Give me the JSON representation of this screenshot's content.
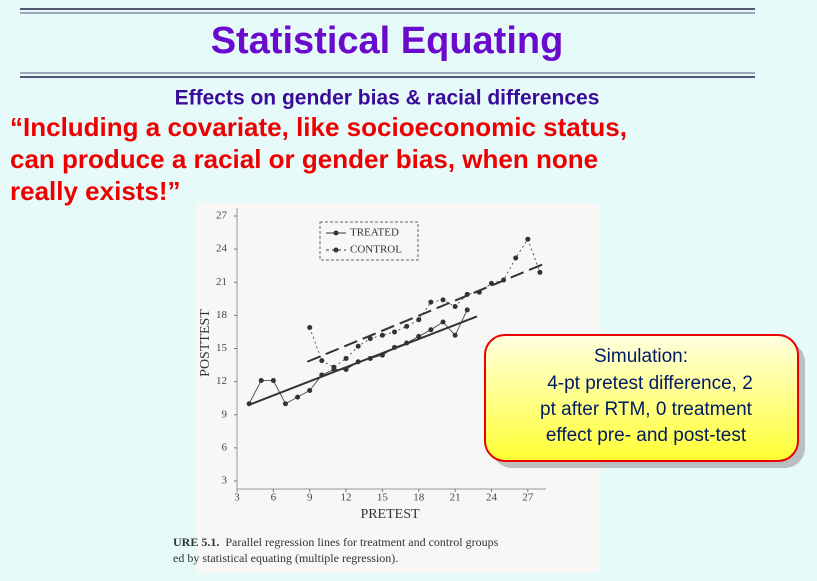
{
  "slide": {
    "title": "Statistical Equating",
    "subtitle": "Effects on gender bias & racial differences",
    "quote": [
      "“Including a covariate, like socioeconomic status,",
      "can produce a racial or gender bias, when none",
      "really exists!”"
    ],
    "callout": [
      "Simulation:",
      "4-pt pretest difference, 2",
      "pt after RTM, 0 treatment",
      "effect pre- and post-test"
    ],
    "caption": {
      "label": "URE 5.1.",
      "lines": [
        "Parallel regression lines for treatment and control groups",
        "ed by statistical equating (multiple regression)."
      ]
    }
  },
  "chart_data": {
    "type": "line",
    "x_label": "PRETEST",
    "y_label": "POSTTEST",
    "xlim": [
      3,
      28.5
    ],
    "ylim": [
      3,
      27
    ],
    "xticks": [
      3,
      6,
      9,
      12,
      15,
      18,
      21,
      24,
      27
    ],
    "yticks": [
      3,
      6,
      9,
      12,
      15,
      18,
      21,
      24,
      27
    ],
    "series": [
      {
        "name": "TREATED",
        "color": "#333333",
        "dash": false,
        "x": [
          4,
          5,
          6,
          7,
          8,
          9,
          10,
          11,
          12,
          13,
          14,
          15,
          16,
          17,
          18,
          19,
          20,
          21,
          22
        ],
        "values": [
          10.0,
          12.1,
          12.1,
          10.0,
          10.6,
          11.2,
          12.6,
          13.1,
          13.1,
          13.8,
          14.1,
          14.4,
          15.1,
          15.5,
          16.1,
          16.7,
          17.4,
          16.2,
          18.5
        ],
        "fit_x": [
          4,
          22.8
        ],
        "fit_values": [
          9.9,
          17.9
        ]
      },
      {
        "name": "CONTROL",
        "color": "#333333",
        "dash": true,
        "x": [
          9,
          10,
          11,
          12,
          13,
          14,
          15,
          16,
          17,
          18,
          19,
          20,
          21,
          22,
          23,
          24,
          25,
          26,
          27,
          28
        ],
        "values": [
          16.9,
          13.9,
          13.3,
          14.1,
          15.2,
          15.9,
          16.2,
          16.5,
          17.0,
          17.6,
          19.2,
          19.4,
          18.8,
          19.9,
          20.1,
          20.9,
          21.2,
          23.2,
          24.9,
          21.9
        ],
        "fit_x": [
          8.8,
          28.4
        ],
        "fit_values": [
          13.8,
          22.7
        ]
      }
    ]
  }
}
